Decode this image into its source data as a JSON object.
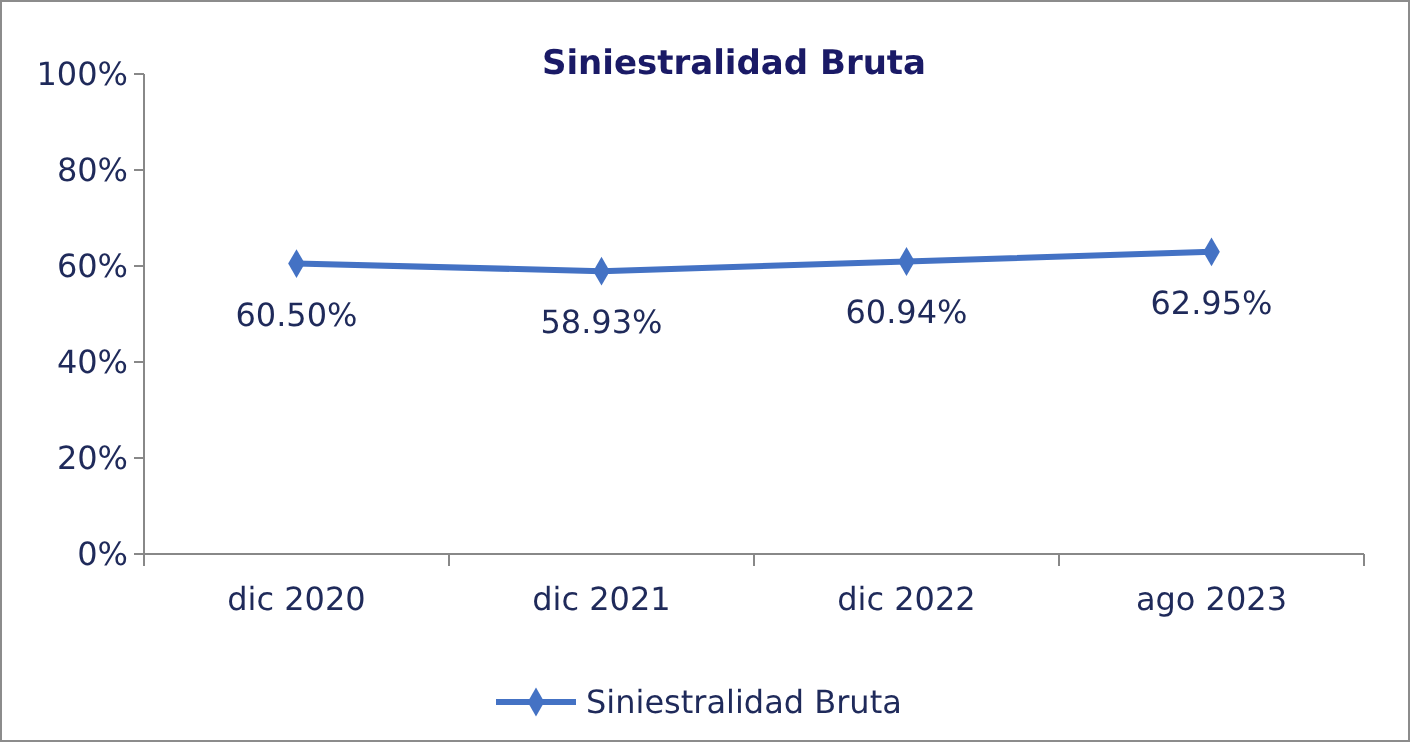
{
  "chart_data": {
    "type": "line",
    "title": "Siniestralidad Bruta",
    "categories": [
      "dic 2020",
      "dic 2021",
      "dic 2022",
      "ago 2023"
    ],
    "series": [
      {
        "name": "Siniestralidad Bruta",
        "color": "#4472c4",
        "values": [
          60.5,
          58.93,
          60.94,
          62.95
        ],
        "value_labels": [
          "60.50%",
          "58.93%",
          "60.94%",
          "62.95%"
        ]
      }
    ],
    "ylim": [
      0,
      100
    ],
    "yticks": [
      {
        "value": 0,
        "label": "0%"
      },
      {
        "value": 20,
        "label": "20%"
      },
      {
        "value": 40,
        "label": "40%"
      },
      {
        "value": 60,
        "label": "60%"
      },
      {
        "value": 80,
        "label": "80%"
      },
      {
        "value": 100,
        "label": "100%"
      }
    ],
    "grid": false,
    "legend": "bottom",
    "marker": "diamond",
    "line_style": "solid"
  }
}
